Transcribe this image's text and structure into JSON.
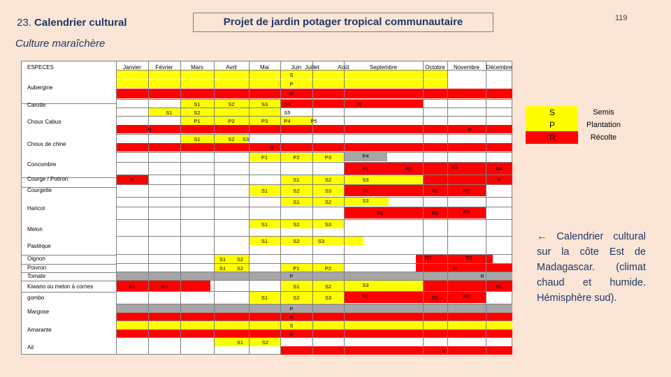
{
  "header": {
    "section_number": "23.",
    "section_title": "Calendrier cultural",
    "main_title": "Projet de jardin potager tropical communautaire",
    "page_number": "119",
    "subtitle": "Culture maraîchère"
  },
  "table": {
    "corner_label": "ESPECES",
    "months": [
      "Janvier",
      "Février",
      "Mars",
      "Avril",
      "Mai",
      "Juin",
      "Juillet",
      "Août",
      "Septembre",
      "Octobre",
      "Novembre",
      "Décembre"
    ],
    "species": [
      "Aubergine",
      "Carotte",
      "Choux Cabus",
      "Choux de chine",
      "Concombre",
      "Courge / Potiron",
      "Courgette",
      "Haricot",
      "Melon",
      "Pastèque",
      "Oignon",
      "Poivron",
      "Tomate",
      "Kiwano ou melon à cornes",
      "gombo",
      "Margose",
      "Amarante",
      "Ail"
    ],
    "cells": [
      "S",
      "P",
      "R",
      "S1",
      "S2",
      "S3",
      "S4",
      "S5",
      "R",
      "S1",
      "S2",
      "P1",
      "P2",
      "P3",
      "P4",
      "P5",
      "R",
      "R",
      "S1",
      "S2",
      "S3",
      "R",
      "P1",
      "P2",
      "P3",
      "P4",
      "R1",
      "R2",
      "R3",
      "R4",
      "R",
      "S1",
      "S2",
      "S3",
      "R",
      "S1",
      "S2",
      "S3",
      "R1",
      "R2",
      "R3",
      "S1",
      "S2",
      "S3",
      "R1",
      "R2",
      "R3",
      "S1",
      "S2",
      "S3",
      "S1",
      "S2",
      "S3",
      "S1",
      "S2",
      "S1",
      "S2",
      "R1",
      "R2",
      "P1",
      "P2",
      "R",
      "P",
      "R",
      "R2",
      "R3",
      "S1",
      "S2",
      "S3",
      "R1",
      "S1",
      "S2",
      "S3",
      "R1",
      "R2",
      "R3",
      "P",
      "R",
      "S",
      "R",
      "S1",
      "S2",
      "R"
    ]
  },
  "legend": [
    {
      "code": "S",
      "label": "Semis",
      "color": "#ffff00"
    },
    {
      "code": "P",
      "label": "Plantation",
      "color": "#ffff00"
    },
    {
      "code": "R",
      "label": "Récolte",
      "color": "#ff0000"
    }
  ],
  "note": "← Calendrier cultural sur la côte Est de Madagascar. (climat chaud et humide. Hémisphère sud).",
  "colors": {
    "background": "#fbe5d6",
    "sowing": "#ffff00",
    "harvest": "#ff0000",
    "other": "#a6a6a6",
    "text": "#1f3864"
  }
}
